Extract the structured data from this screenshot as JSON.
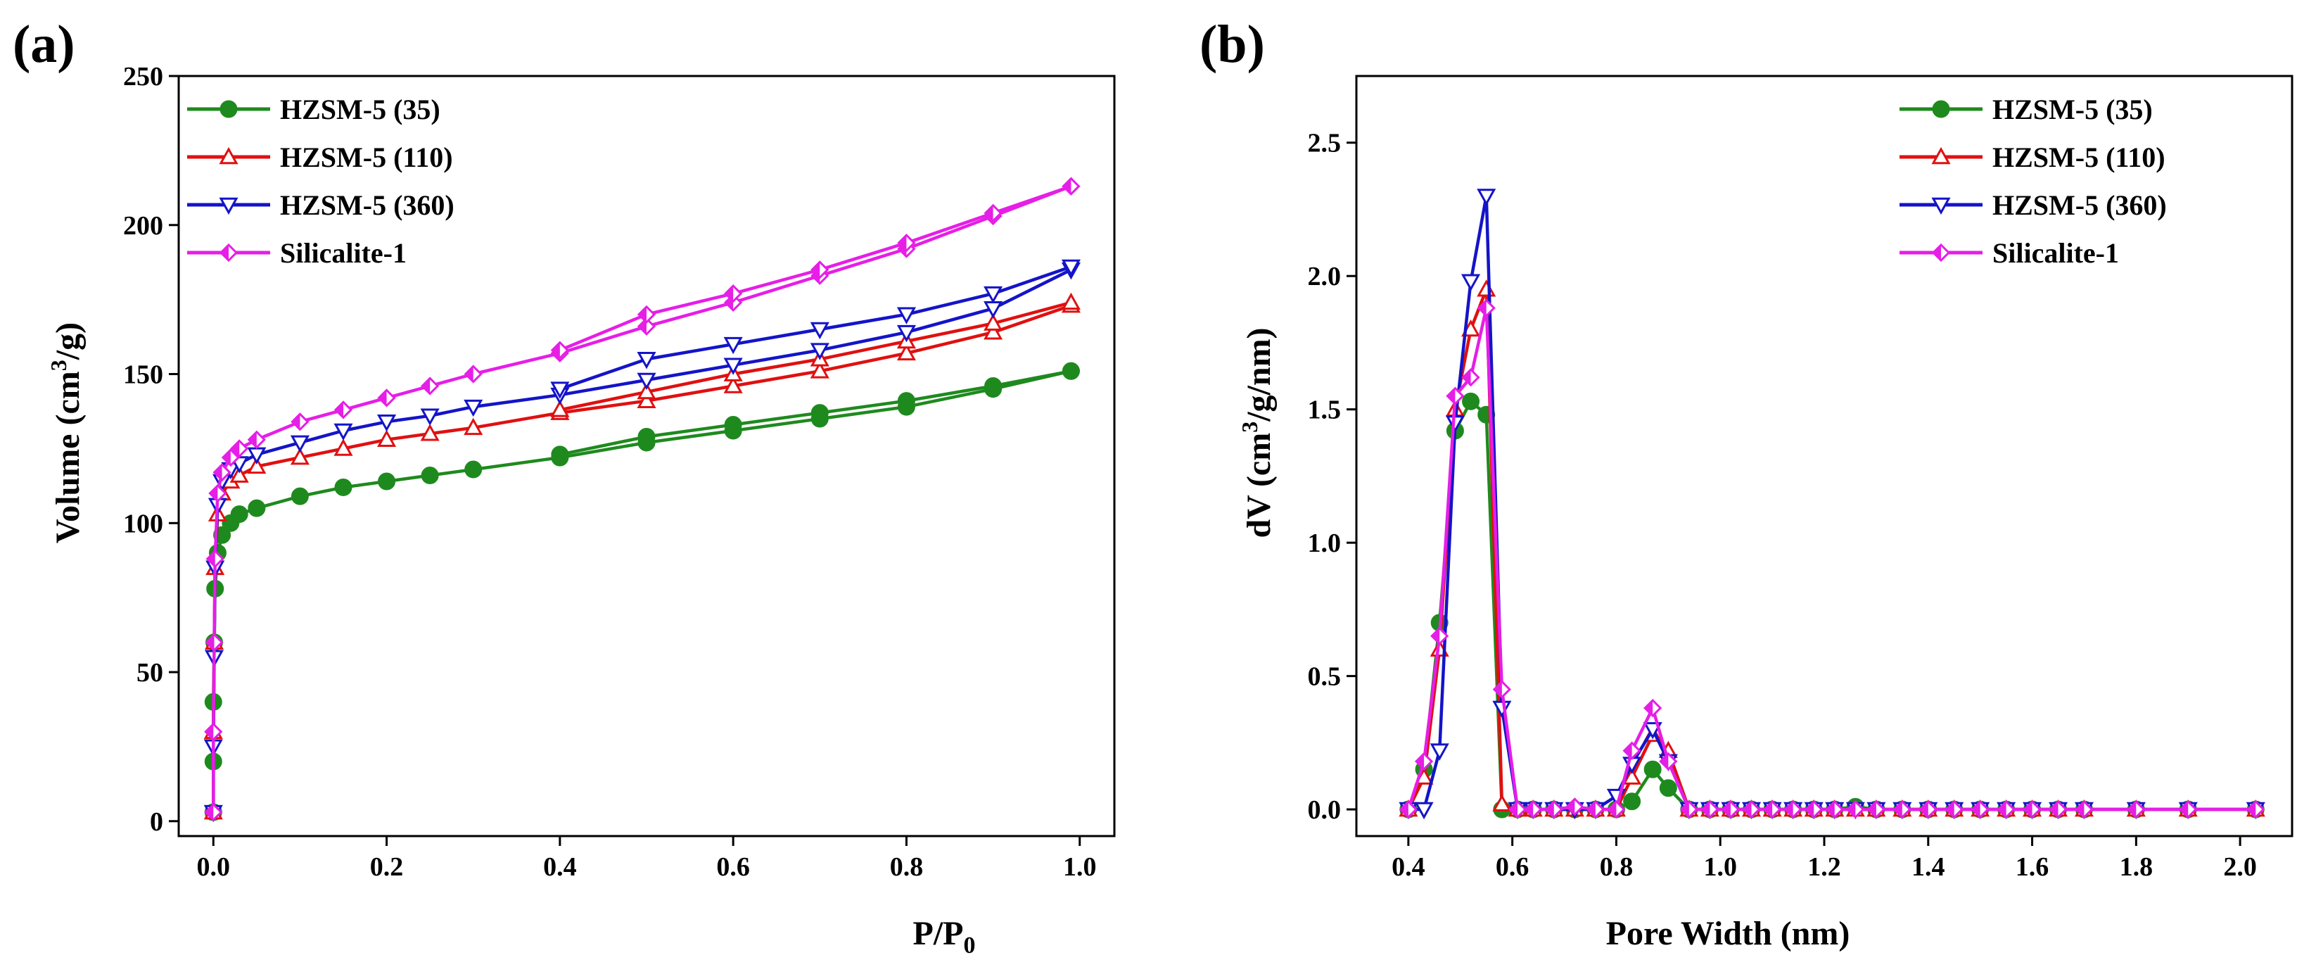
{
  "colors": {
    "HZSM-5 (35)": "#1e8a1e",
    "HZSM-5 (110)": "#e01010",
    "HZSM-5 (360)": "#1414c8",
    "Silicalite-1": "#e61ee6"
  },
  "chart_data": [
    {
      "panel": "(a)",
      "type": "line",
      "xlabel": "P/P",
      "xlabel_sub": "0",
      "ylabel_pre": "Volume (cm",
      "ylabel_sup": "3",
      "ylabel_post": "/g)",
      "xlim": [
        -0.04,
        1.04
      ],
      "ylim": [
        -5,
        250
      ],
      "xticks": [
        0.0,
        0.2,
        0.4,
        0.6,
        0.8,
        1.0
      ],
      "xtick_labels": [
        "0.0",
        "0.2",
        "0.4",
        "0.6",
        "0.8",
        "1.0"
      ],
      "yticks": [
        0,
        50,
        100,
        150,
        200,
        250
      ],
      "ytick_labels": [
        "0",
        "50",
        "100",
        "150",
        "200",
        "250"
      ],
      "legend_position": "top-left",
      "series": [
        {
          "name": "HZSM-5 (35)",
          "marker": "circle",
          "adsorption": [
            [
              0.0,
              3
            ],
            [
              0.0,
              20
            ],
            [
              0.0,
              40
            ],
            [
              0.001,
              60
            ],
            [
              0.002,
              78
            ],
            [
              0.005,
              90
            ],
            [
              0.01,
              96
            ],
            [
              0.02,
              100
            ],
            [
              0.03,
              103
            ],
            [
              0.05,
              105
            ],
            [
              0.1,
              109
            ],
            [
              0.15,
              112
            ],
            [
              0.2,
              114
            ],
            [
              0.25,
              116
            ],
            [
              0.3,
              118
            ],
            [
              0.4,
              122
            ],
            [
              0.5,
              127
            ],
            [
              0.6,
              131
            ],
            [
              0.7,
              135
            ],
            [
              0.8,
              139
            ],
            [
              0.9,
              145
            ],
            [
              0.99,
              151
            ]
          ],
          "desorption": [
            [
              0.99,
              151
            ],
            [
              0.9,
              146
            ],
            [
              0.8,
              141
            ],
            [
              0.7,
              137
            ],
            [
              0.6,
              133
            ],
            [
              0.5,
              129
            ],
            [
              0.4,
              123
            ]
          ]
        },
        {
          "name": "HZSM-5 (110)",
          "marker": "triangle-up",
          "adsorption": [
            [
              0.0,
              3
            ],
            [
              0.0,
              30
            ],
            [
              0.001,
              60
            ],
            [
              0.002,
              85
            ],
            [
              0.005,
              103
            ],
            [
              0.01,
              110
            ],
            [
              0.02,
              114
            ],
            [
              0.03,
              116
            ],
            [
              0.05,
              119
            ],
            [
              0.1,
              122
            ],
            [
              0.15,
              125
            ],
            [
              0.2,
              128
            ],
            [
              0.25,
              130
            ],
            [
              0.3,
              132
            ],
            [
              0.4,
              137
            ],
            [
              0.5,
              141
            ],
            [
              0.6,
              146
            ],
            [
              0.7,
              151
            ],
            [
              0.8,
              157
            ],
            [
              0.9,
              164
            ],
            [
              0.99,
              173
            ]
          ],
          "desorption": [
            [
              0.99,
              174
            ],
            [
              0.9,
              167
            ],
            [
              0.8,
              161
            ],
            [
              0.7,
              155
            ],
            [
              0.6,
              150
            ],
            [
              0.5,
              144
            ],
            [
              0.4,
              138
            ]
          ]
        },
        {
          "name": "HZSM-5 (360)",
          "marker": "triangle-down",
          "adsorption": [
            [
              0.0,
              3
            ],
            [
              0.0,
              25
            ],
            [
              0.001,
              55
            ],
            [
              0.002,
              85
            ],
            [
              0.005,
              106
            ],
            [
              0.01,
              114
            ],
            [
              0.02,
              118
            ],
            [
              0.03,
              120
            ],
            [
              0.05,
              123
            ],
            [
              0.1,
              127
            ],
            [
              0.15,
              131
            ],
            [
              0.2,
              134
            ],
            [
              0.25,
              136
            ],
            [
              0.3,
              139
            ],
            [
              0.4,
              143
            ],
            [
              0.5,
              148
            ],
            [
              0.6,
              153
            ],
            [
              0.7,
              158
            ],
            [
              0.8,
              164
            ],
            [
              0.9,
              172
            ],
            [
              0.99,
              185
            ]
          ],
          "desorption": [
            [
              0.99,
              186
            ],
            [
              0.9,
              177
            ],
            [
              0.8,
              170
            ],
            [
              0.7,
              165
            ],
            [
              0.6,
              160
            ],
            [
              0.5,
              155
            ],
            [
              0.4,
              145
            ]
          ]
        },
        {
          "name": "Silicalite-1",
          "marker": "diamond",
          "adsorption": [
            [
              0.0,
              3
            ],
            [
              0.0,
              30
            ],
            [
              0.001,
              60
            ],
            [
              0.002,
              88
            ],
            [
              0.005,
              110
            ],
            [
              0.01,
              117
            ],
            [
              0.02,
              122
            ],
            [
              0.03,
              125
            ],
            [
              0.05,
              128
            ],
            [
              0.1,
              134
            ],
            [
              0.15,
              138
            ],
            [
              0.2,
              142
            ],
            [
              0.25,
              146
            ],
            [
              0.3,
              150
            ],
            [
              0.4,
              157
            ],
            [
              0.5,
              166
            ],
            [
              0.6,
              174
            ],
            [
              0.7,
              183
            ],
            [
              0.8,
              192
            ],
            [
              0.9,
              203
            ],
            [
              0.99,
              213
            ]
          ],
          "desorption": [
            [
              0.99,
              213
            ],
            [
              0.9,
              204
            ],
            [
              0.8,
              194
            ],
            [
              0.7,
              185
            ],
            [
              0.6,
              177
            ],
            [
              0.5,
              170
            ],
            [
              0.4,
              158
            ]
          ]
        }
      ]
    },
    {
      "panel": "(b)",
      "type": "line",
      "xlabel": "Pore Width (nm)",
      "ylabel_pre": "dV (cm",
      "ylabel_sup": "3",
      "ylabel_post": "/g/nm)",
      "xlim": [
        0.3,
        2.1
      ],
      "ylim": [
        -0.1,
        2.75
      ],
      "xticks": [
        0.4,
        0.6,
        0.8,
        1.0,
        1.2,
        1.4,
        1.6,
        1.8,
        2.0
      ],
      "xtick_labels": [
        "0.4",
        "0.6",
        "0.8",
        "1.0",
        "1.2",
        "1.4",
        "1.6",
        "1.8",
        "2.0"
      ],
      "yticks": [
        0.0,
        0.5,
        1.0,
        1.5,
        2.0,
        2.5
      ],
      "ytick_labels": [
        "0.0",
        "0.5",
        "1.0",
        "1.5",
        "2.0",
        "2.5"
      ],
      "legend_position": "top-right",
      "series": [
        {
          "name": "HZSM-5 (35)",
          "marker": "circle",
          "x": [
            0.4,
            0.43,
            0.46,
            0.49,
            0.52,
            0.55,
            0.58,
            0.61,
            0.64,
            0.68,
            0.72,
            0.76,
            0.8,
            0.83,
            0.87,
            0.9,
            0.94,
            0.98,
            1.02,
            1.06,
            1.1,
            1.14,
            1.18,
            1.22,
            1.26,
            1.3,
            1.35,
            1.4,
            1.45,
            1.5,
            1.55,
            1.6,
            1.65,
            1.7,
            1.8,
            1.9,
            2.03
          ],
          "values": [
            0.0,
            0.15,
            0.7,
            1.42,
            1.53,
            1.48,
            0.0,
            0.0,
            0.0,
            0.0,
            0.0,
            0.0,
            0.0,
            0.03,
            0.15,
            0.08,
            0.0,
            0.0,
            0.0,
            0.0,
            0.0,
            0.0,
            0.0,
            0.0,
            0.01,
            0.0,
            0.0,
            0.0,
            0.0,
            0.0,
            0.0,
            0.0,
            0.0,
            0.0,
            0.0,
            0.0,
            0.0
          ]
        },
        {
          "name": "HZSM-5 (110)",
          "marker": "triangle-up",
          "x": [
            0.4,
            0.43,
            0.46,
            0.49,
            0.52,
            0.55,
            0.58,
            0.61,
            0.64,
            0.68,
            0.72,
            0.76,
            0.8,
            0.83,
            0.87,
            0.9,
            0.94,
            0.98,
            1.02,
            1.06,
            1.1,
            1.14,
            1.18,
            1.22,
            1.26,
            1.3,
            1.35,
            1.4,
            1.45,
            1.5,
            1.55,
            1.6,
            1.65,
            1.7,
            1.8,
            1.9,
            2.03
          ],
          "values": [
            0.0,
            0.12,
            0.6,
            1.5,
            1.8,
            1.95,
            0.02,
            0.0,
            0.0,
            0.0,
            0.0,
            0.0,
            0.0,
            0.12,
            0.28,
            0.22,
            0.0,
            0.0,
            0.0,
            0.0,
            0.0,
            0.0,
            0.0,
            0.0,
            0.0,
            0.0,
            0.0,
            0.0,
            0.0,
            0.0,
            0.0,
            0.0,
            0.0,
            0.0,
            0.0,
            0.0,
            0.0
          ]
        },
        {
          "name": "HZSM-5 (360)",
          "marker": "triangle-down",
          "x": [
            0.4,
            0.43,
            0.46,
            0.49,
            0.52,
            0.55,
            0.58,
            0.61,
            0.64,
            0.68,
            0.72,
            0.76,
            0.8,
            0.83,
            0.87,
            0.9,
            0.94,
            0.98,
            1.02,
            1.06,
            1.1,
            1.14,
            1.18,
            1.22,
            1.26,
            1.3,
            1.35,
            1.4,
            1.45,
            1.5,
            1.55,
            1.6,
            1.65,
            1.7,
            1.8,
            1.9,
            2.03
          ],
          "values": [
            0.0,
            0.0,
            0.22,
            1.45,
            1.98,
            2.3,
            0.38,
            0.0,
            0.0,
            0.0,
            0.0,
            0.0,
            0.05,
            0.17,
            0.3,
            0.18,
            0.0,
            0.0,
            0.0,
            0.0,
            0.0,
            0.0,
            0.0,
            0.0,
            0.0,
            0.0,
            0.0,
            0.0,
            0.0,
            0.0,
            0.0,
            0.0,
            0.0,
            0.0,
            0.0,
            0.0,
            0.0
          ]
        },
        {
          "name": "Silicalite-1",
          "marker": "diamond",
          "x": [
            0.4,
            0.43,
            0.46,
            0.49,
            0.52,
            0.55,
            0.58,
            0.61,
            0.64,
            0.68,
            0.72,
            0.76,
            0.8,
            0.83,
            0.87,
            0.9,
            0.94,
            0.98,
            1.02,
            1.06,
            1.1,
            1.14,
            1.18,
            1.22,
            1.26,
            1.3,
            1.35,
            1.4,
            1.45,
            1.5,
            1.55,
            1.6,
            1.65,
            1.7,
            1.8,
            1.9,
            2.03
          ],
          "values": [
            0.0,
            0.18,
            0.65,
            1.55,
            1.62,
            1.88,
            0.45,
            0.0,
            0.0,
            0.0,
            0.01,
            0.0,
            0.0,
            0.22,
            0.38,
            0.18,
            0.0,
            0.0,
            0.0,
            0.0,
            0.0,
            0.0,
            0.0,
            0.0,
            0.0,
            0.0,
            0.0,
            0.0,
            0.0,
            0.0,
            0.0,
            0.0,
            0.0,
            0.0,
            0.0,
            0.0,
            0.0
          ]
        }
      ]
    }
  ]
}
